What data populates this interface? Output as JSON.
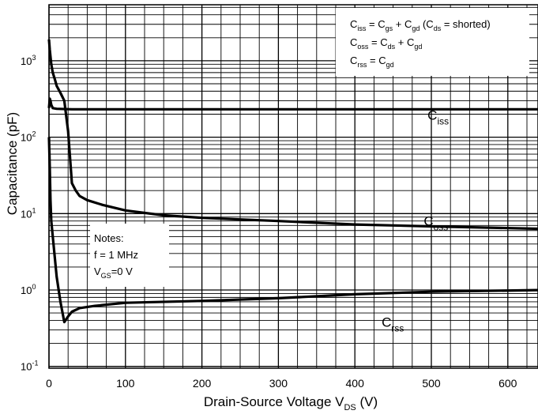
{
  "chart_data": {
    "type": "line",
    "title": "",
    "xlabel": "Drain-Source Voltage V",
    "xlabel_sub": "DS",
    "xlabel_unit": " (V)",
    "ylabel": "Capacitance (pF)",
    "xlim": [
      0,
      650
    ],
    "ylim": [
      0.1,
      5000
    ],
    "yscale": "log",
    "grid": true,
    "x_ticks": [
      {
        "v": 0,
        "label": "0"
      },
      {
        "v": 100,
        "label": "100"
      },
      {
        "v": 200,
        "label": "200"
      },
      {
        "v": 300,
        "label": "300"
      },
      {
        "v": 400,
        "label": "400"
      },
      {
        "v": 500,
        "label": "500"
      },
      {
        "v": 600,
        "label": "600"
      }
    ],
    "y_ticks": [
      {
        "v": 0.1,
        "base": "10",
        "exp": "-1"
      },
      {
        "v": 1,
        "base": "10",
        "exp": "0"
      },
      {
        "v": 10,
        "base": "10",
        "exp": "1"
      },
      {
        "v": 100,
        "base": "10",
        "exp": "2"
      },
      {
        "v": 1000,
        "base": "10",
        "exp": "3"
      }
    ],
    "series": [
      {
        "name": "Ciss",
        "label_main": "C",
        "label_sub": "iss",
        "label_at": [
          495,
          170
        ],
        "x": [
          0,
          1,
          2,
          3,
          5,
          10,
          30,
          100,
          200,
          300,
          400,
          500,
          650
        ],
        "y": [
          240,
          320,
          300,
          265,
          240,
          235,
          232,
          232,
          232,
          232,
          232,
          232,
          232
        ]
      },
      {
        "name": "Coss",
        "label_main": "C",
        "label_sub": "oss",
        "label_at": [
          490,
          7
        ],
        "x": [
          0,
          1,
          3,
          5,
          8,
          10,
          15,
          20,
          25,
          30,
          35,
          40,
          50,
          70,
          100,
          150,
          200,
          300,
          400,
          500,
          650
        ],
        "y": [
          1900,
          1400,
          900,
          700,
          560,
          470,
          380,
          300,
          120,
          25,
          20,
          17,
          15,
          13,
          11,
          9.5,
          8.8,
          8,
          7.2,
          6.8,
          6.3
        ]
      },
      {
        "name": "Crss",
        "label_main": "C",
        "label_sub": "rss",
        "label_at": [
          435,
          0.33
        ],
        "x": [
          0,
          1,
          2,
          3,
          5,
          10,
          15,
          20,
          25,
          30,
          40,
          60,
          100,
          200,
          300,
          400,
          500,
          650
        ],
        "y": [
          100,
          40,
          15,
          8,
          5,
          1.5,
          0.7,
          0.38,
          0.45,
          0.52,
          0.58,
          0.62,
          0.68,
          0.72,
          0.78,
          0.88,
          0.95,
          1.0
        ]
      }
    ]
  },
  "legend_box": {
    "line1": {
      "c1": "C",
      "s1": "iss",
      "m1": " = C",
      "s2": "gs",
      "m2": " + C",
      "s3": "gd",
      "m3": " (C",
      "s4": "ds",
      "m4": " = shorted)"
    },
    "line2": {
      "c1": "C",
      "s1": "oss",
      "m1": " = C",
      "s2": "ds",
      "m2": " + C",
      "s3": "gd"
    },
    "line3": {
      "c1": "C",
      "s1": "rss",
      "m1": " = C",
      "s2": "gd"
    }
  },
  "notes": {
    "title": "Notes:",
    "line1": "f = 1 MHz",
    "line2_main": "V",
    "line2_sub": "GS",
    "line2_rest": "=0 V"
  }
}
